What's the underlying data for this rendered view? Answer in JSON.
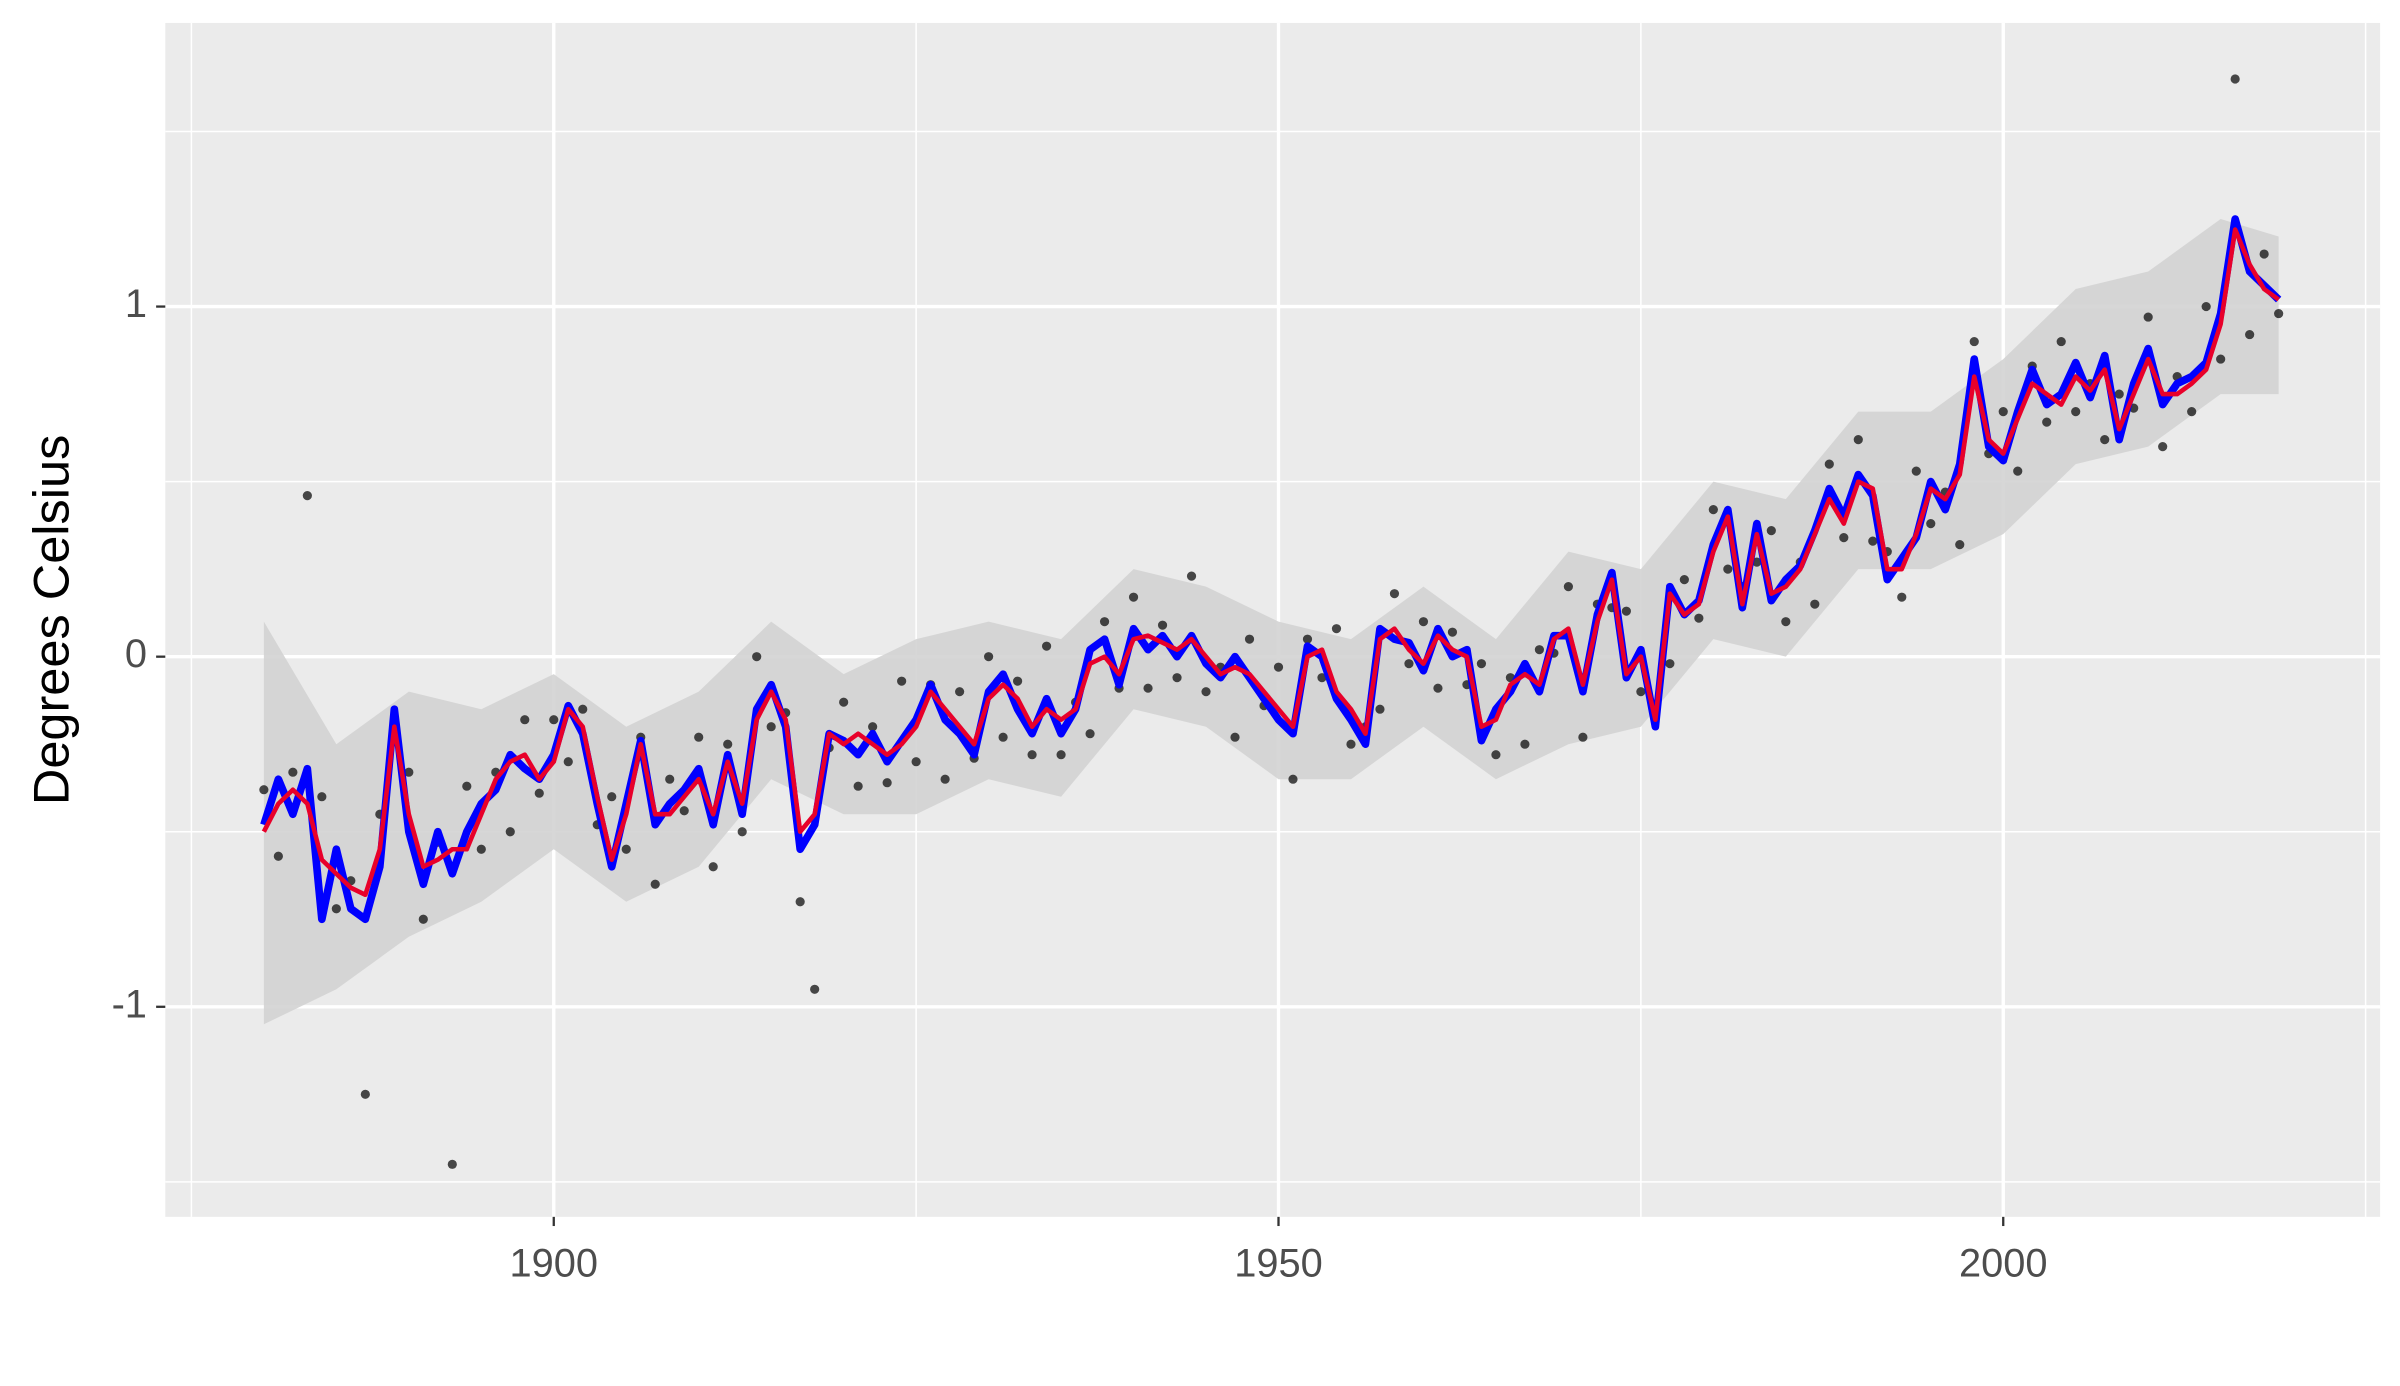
{
  "chart_data": {
    "type": "line",
    "y_label": "Degrees Celsius",
    "xlim": [
      1873.2,
      2026
    ],
    "ylim": [
      -1.6,
      1.81
    ],
    "xticks": [
      1900,
      1950,
      2000
    ],
    "yticks": [
      -1,
      0,
      1
    ],
    "x_minor_grid": [
      1875,
      1925,
      1975,
      2025
    ],
    "y_minor_grid": [
      -1.5,
      -0.5,
      0.5,
      1.5
    ],
    "grid": true,
    "x": [
      1880,
      1881,
      1882,
      1883,
      1884,
      1885,
      1886,
      1887,
      1888,
      1889,
      1890,
      1891,
      1892,
      1893,
      1894,
      1895,
      1896,
      1897,
      1898,
      1899,
      1900,
      1901,
      1902,
      1903,
      1904,
      1905,
      1906,
      1907,
      1908,
      1909,
      1910,
      1911,
      1912,
      1913,
      1914,
      1915,
      1916,
      1917,
      1918,
      1919,
      1920,
      1921,
      1922,
      1923,
      1924,
      1925,
      1926,
      1927,
      1928,
      1929,
      1930,
      1931,
      1932,
      1933,
      1934,
      1935,
      1936,
      1937,
      1938,
      1939,
      1940,
      1941,
      1942,
      1943,
      1944,
      1945,
      1946,
      1947,
      1948,
      1949,
      1950,
      1951,
      1952,
      1953,
      1954,
      1955,
      1956,
      1957,
      1958,
      1959,
      1960,
      1961,
      1962,
      1963,
      1964,
      1965,
      1966,
      1967,
      1968,
      1969,
      1970,
      1971,
      1972,
      1973,
      1974,
      1975,
      1976,
      1977,
      1978,
      1979,
      1980,
      1981,
      1982,
      1983,
      1984,
      1985,
      1986,
      1987,
      1988,
      1989,
      1990,
      1991,
      1992,
      1993,
      1994,
      1995,
      1996,
      1997,
      1998,
      1999,
      2000,
      2001,
      2002,
      2003,
      2004,
      2005,
      2006,
      2007,
      2008,
      2009,
      2010,
      2011,
      2012,
      2013,
      2014,
      2015,
      2016,
      2017,
      2018,
      2019
    ],
    "ribbon": {
      "color": "#d3d3d3",
      "x": [
        1880,
        1885,
        1890,
        1895,
        1900,
        1905,
        1910,
        1915,
        1920,
        1925,
        1930,
        1935,
        1940,
        1945,
        1950,
        1955,
        1960,
        1965,
        1970,
        1975,
        1980,
        1985,
        1990,
        1995,
        2000,
        2005,
        2010,
        2015,
        2019
      ],
      "lower": [
        -1.05,
        -0.95,
        -0.8,
        -0.7,
        -0.55,
        -0.7,
        -0.6,
        -0.35,
        -0.45,
        -0.45,
        -0.35,
        -0.4,
        -0.15,
        -0.2,
        -0.35,
        -0.35,
        -0.2,
        -0.35,
        -0.25,
        -0.2,
        0.05,
        0,
        0.25,
        0.25,
        0.35,
        0.55,
        0.6,
        0.75,
        0.75
      ],
      "upper": [
        0.1,
        -0.25,
        -0.1,
        -0.15,
        -0.05,
        -0.2,
        -0.1,
        0.1,
        -0.05,
        0.05,
        0.1,
        0.05,
        0.25,
        0.2,
        0.1,
        0.05,
        0.2,
        0.05,
        0.3,
        0.25,
        0.5,
        0.45,
        0.7,
        0.7,
        0.85,
        1.05,
        1.1,
        1.25,
        1.2
      ]
    },
    "series": [
      {
        "style": "points",
        "color": "#000000",
        "values": [
          -0.38,
          -0.57,
          -0.33,
          0.46,
          -0.4,
          -0.72,
          -0.64,
          -1.25,
          -0.45,
          -0.24,
          -0.33,
          -0.75,
          -0.53,
          -1.45,
          -0.37,
          -0.55,
          -0.33,
          -0.5,
          -0.18,
          -0.39,
          -0.18,
          -0.3,
          -0.15,
          -0.48,
          -0.4,
          -0.55,
          -0.23,
          -0.65,
          -0.35,
          -0.44,
          -0.23,
          -0.6,
          -0.25,
          -0.5,
          0,
          -0.2,
          -0.16,
          -0.7,
          -0.95,
          -0.26,
          -0.13,
          -0.37,
          -0.2,
          -0.36,
          -0.07,
          -0.3,
          -0.08,
          -0.35,
          -0.1,
          -0.29,
          0,
          -0.23,
          -0.07,
          -0.28,
          0.03,
          -0.28,
          -0.13,
          -0.22,
          0.1,
          -0.09,
          0.17,
          -0.09,
          0.09,
          -0.06,
          0.23,
          -0.1,
          -0.03,
          -0.23,
          0.05,
          -0.14,
          -0.03,
          -0.35,
          0.05,
          -0.06,
          0.08,
          -0.25,
          -0.2,
          -0.15,
          0.18,
          -0.02,
          0.1,
          -0.09,
          0.07,
          -0.08,
          -0.02,
          -0.28,
          -0.06,
          -0.25,
          0.02,
          0.01,
          0.2,
          -0.23,
          0.15,
          0.14,
          0.13,
          -0.1,
          -0.16,
          -0.02,
          0.22,
          0.11,
          0.42,
          0.25,
          0.2,
          0.27,
          0.36,
          0.1,
          0.27,
          0.15,
          0.55,
          0.34,
          0.62,
          0.33,
          0.3,
          0.17,
          0.53,
          0.38,
          0.47,
          0.32,
          0.9,
          0.58,
          0.7,
          0.53,
          0.83,
          0.67,
          0.9,
          0.7,
          0.78,
          0.62,
          0.75,
          0.71,
          0.97,
          0.6,
          0.8,
          0.7,
          1,
          0.85,
          1.65,
          0.92,
          1.15,
          0.98
        ]
      },
      {
        "style": "line",
        "color": "#0000ff",
        "width": 5,
        "values": [
          -0.48,
          -0.35,
          -0.45,
          -0.32,
          -0.75,
          -0.55,
          -0.72,
          -0.75,
          -0.6,
          -0.15,
          -0.5,
          -0.65,
          -0.5,
          -0.62,
          -0.5,
          -0.42,
          -0.38,
          -0.28,
          -0.32,
          -0.35,
          -0.28,
          -0.14,
          -0.22,
          -0.42,
          -0.6,
          -0.42,
          -0.24,
          -0.48,
          -0.42,
          -0.38,
          -0.32,
          -0.48,
          -0.28,
          -0.45,
          -0.15,
          -0.08,
          -0.2,
          -0.55,
          -0.48,
          -0.22,
          -0.24,
          -0.28,
          -0.22,
          -0.3,
          -0.24,
          -0.18,
          -0.08,
          -0.18,
          -0.22,
          -0.28,
          -0.1,
          -0.05,
          -0.15,
          -0.22,
          -0.12,
          -0.22,
          -0.15,
          0.02,
          0.05,
          -0.08,
          0.08,
          0.02,
          0.06,
          0,
          0.06,
          -0.02,
          -0.06,
          0,
          -0.06,
          -0.12,
          -0.18,
          -0.22,
          0.03,
          0,
          -0.12,
          -0.18,
          -0.25,
          0.08,
          0.05,
          0.04,
          -0.04,
          0.08,
          0,
          0.02,
          -0.24,
          -0.15,
          -0.1,
          -0.02,
          -0.1,
          0.06,
          0.06,
          -0.1,
          0.12,
          0.24,
          -0.06,
          0.02,
          -0.2,
          0.2,
          0.12,
          0.16,
          0.32,
          0.42,
          0.14,
          0.38,
          0.16,
          0.22,
          0.26,
          0.36,
          0.48,
          0.4,
          0.52,
          0.46,
          0.22,
          0.28,
          0.34,
          0.5,
          0.42,
          0.55,
          0.85,
          0.6,
          0.56,
          0.7,
          0.82,
          0.72,
          0.75,
          0.84,
          0.74,
          0.86,
          0.62,
          0.78,
          0.88,
          0.72,
          0.78,
          0.8,
          0.84,
          0.98,
          1.25,
          1.1,
          1.06,
          1.02
        ]
      },
      {
        "style": "line",
        "color": "#e8002a",
        "width": 3,
        "values": [
          -0.5,
          -0.42,
          -0.38,
          -0.42,
          -0.58,
          -0.62,
          -0.66,
          -0.68,
          -0.55,
          -0.2,
          -0.45,
          -0.6,
          -0.58,
          -0.55,
          -0.55,
          -0.45,
          -0.35,
          -0.3,
          -0.28,
          -0.35,
          -0.3,
          -0.15,
          -0.2,
          -0.4,
          -0.58,
          -0.45,
          -0.25,
          -0.45,
          -0.45,
          -0.4,
          -0.35,
          -0.45,
          -0.3,
          -0.42,
          -0.18,
          -0.1,
          -0.18,
          -0.5,
          -0.45,
          -0.22,
          -0.25,
          -0.22,
          -0.25,
          -0.28,
          -0.25,
          -0.2,
          -0.1,
          -0.15,
          -0.2,
          -0.25,
          -0.12,
          -0.08,
          -0.12,
          -0.2,
          -0.15,
          -0.18,
          -0.15,
          -0.02,
          0,
          -0.05,
          0.05,
          0.06,
          0.04,
          0.02,
          0.05,
          0,
          -0.05,
          -0.03,
          -0.05,
          -0.1,
          -0.15,
          -0.2,
          0,
          0.02,
          -0.1,
          -0.15,
          -0.22,
          0.05,
          0.08,
          0.02,
          -0.02,
          0.06,
          0.02,
          0,
          -0.2,
          -0.18,
          -0.08,
          -0.05,
          -0.08,
          0.05,
          0.08,
          -0.08,
          0.1,
          0.22,
          -0.05,
          0,
          -0.18,
          0.18,
          0.12,
          0.15,
          0.3,
          0.4,
          0.15,
          0.35,
          0.18,
          0.2,
          0.25,
          0.35,
          0.45,
          0.38,
          0.5,
          0.48,
          0.25,
          0.25,
          0.35,
          0.48,
          0.45,
          0.52,
          0.8,
          0.62,
          0.58,
          0.68,
          0.78,
          0.75,
          0.72,
          0.8,
          0.76,
          0.82,
          0.65,
          0.75,
          0.85,
          0.75,
          0.75,
          0.78,
          0.82,
          0.95,
          1.22,
          1.12,
          1.05,
          1.02
        ]
      }
    ]
  }
}
